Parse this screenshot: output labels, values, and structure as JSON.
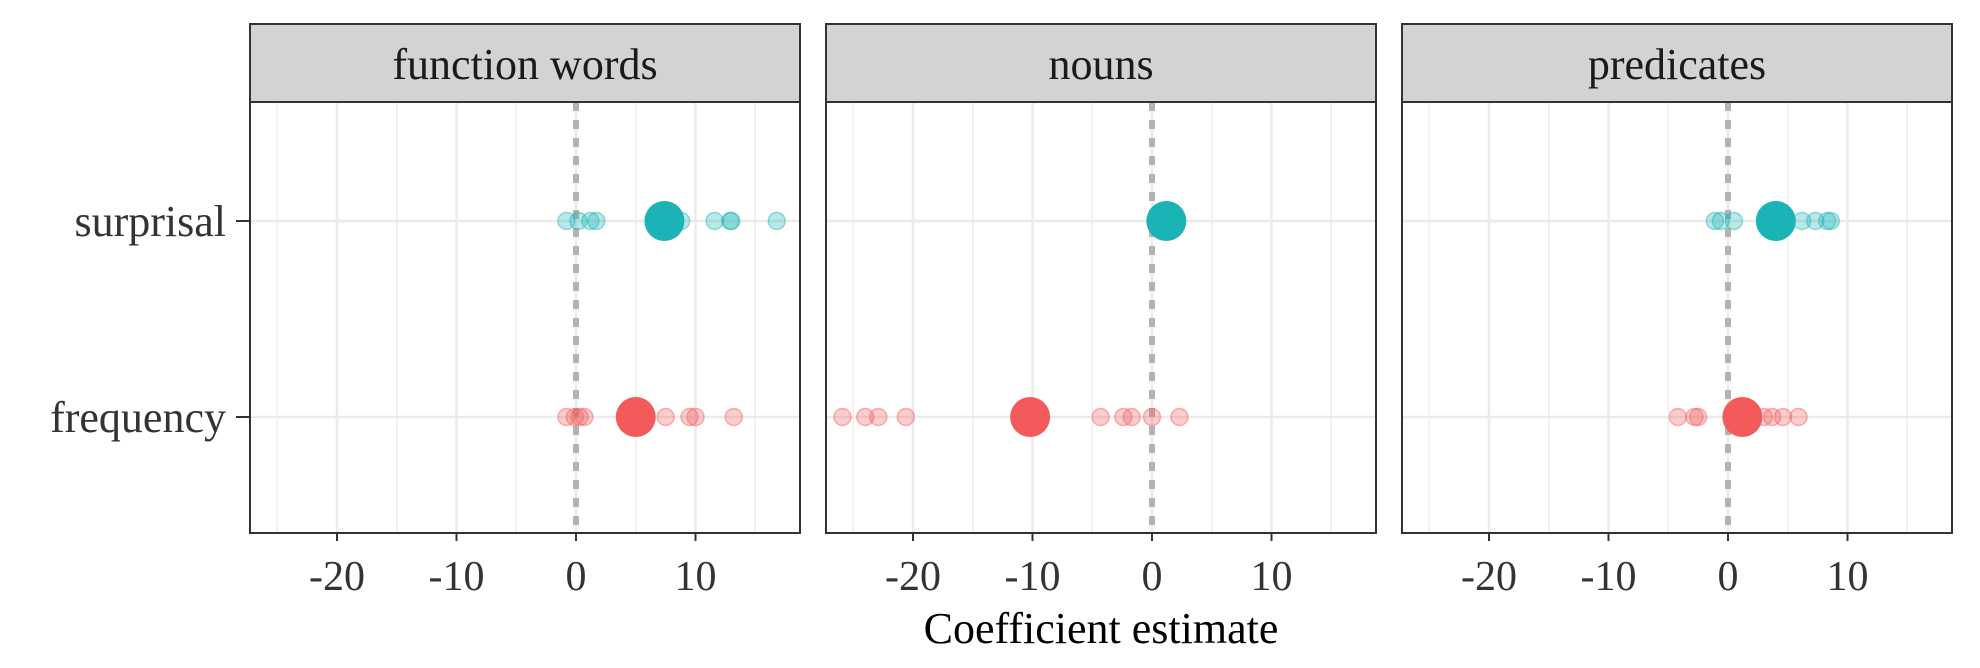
{
  "chart_data": {
    "type": "scatter",
    "xlabel": "Coefficient estimate",
    "ylabel": "",
    "xlim": [
      -28,
      19
    ],
    "x_ticks": [
      "-20",
      "-10",
      "0",
      "10"
    ],
    "x_tick_values": [
      -20,
      -10,
      0,
      10
    ],
    "y_categories": [
      "surprisal",
      "frequency"
    ],
    "reference_line": 0,
    "grid": true,
    "legend": "none",
    "colors": {
      "surprisal": "#1ab3b6",
      "frequency": "#f35b5b",
      "reference_line": "#b3b3b3",
      "strip_bg": "#d3d3d3"
    },
    "panels": [
      {
        "title": "function words",
        "surprisal": {
          "estimate": 7.4,
          "samples": [
            -0.8,
            0.2,
            1.2,
            1.7,
            8.8,
            11.6,
            12.9,
            13.0,
            16.8
          ]
        },
        "frequency": {
          "estimate": 5.0,
          "samples": [
            -0.8,
            -0.1,
            0.3,
            0.7,
            7.5,
            9.5,
            10.0,
            13.2
          ]
        }
      },
      {
        "title": "nouns",
        "surprisal": {
          "estimate": 1.2,
          "samples": []
        },
        "frequency": {
          "estimate": -10.2,
          "samples": [
            -25.9,
            -24.0,
            -22.9,
            -20.6,
            -4.3,
            -2.4,
            -1.7,
            0.0,
            2.3
          ]
        }
      },
      {
        "title": "predicates",
        "surprisal": {
          "estimate": 4.0,
          "samples": [
            -1.1,
            -0.6,
            0.5,
            6.2,
            7.3,
            8.3,
            8.6
          ]
        },
        "frequency": {
          "estimate": 1.2,
          "samples": [
            -4.2,
            -2.8,
            -2.5,
            3.0,
            3.7,
            4.6,
            5.9
          ]
        }
      }
    ]
  }
}
